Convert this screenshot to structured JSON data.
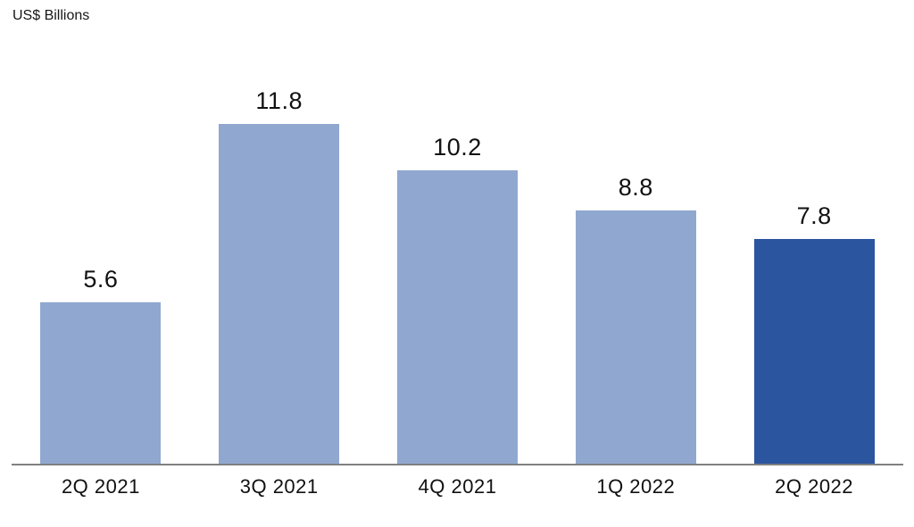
{
  "chart_data": {
    "type": "bar",
    "title": "US$ Billions",
    "ylabel": "US$ Billions",
    "xlabel": "",
    "categories": [
      "2Q 2021",
      "3Q 2021",
      "4Q 2021",
      "1Q 2022",
      "2Q 2022"
    ],
    "values": [
      5.6,
      11.8,
      10.2,
      8.8,
      7.8
    ],
    "value_labels": [
      "5.6",
      "11.8",
      "10.2",
      "8.8",
      "7.8"
    ],
    "highlight_index": 4,
    "ylim": [
      0,
      12
    ],
    "grid": false,
    "legend": false,
    "colors": {
      "bar_default": "#90A8D0",
      "bar_highlight": "#2C55A0",
      "axis_line": "#808080",
      "text": "#111111"
    }
  }
}
